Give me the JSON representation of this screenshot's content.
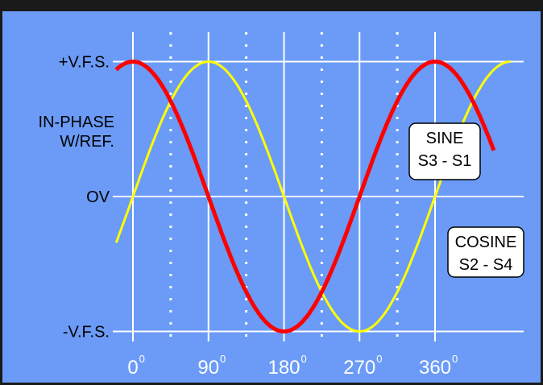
{
  "chart_data": {
    "type": "line",
    "x_unit": "degrees",
    "xlim": [
      -10,
      400
    ],
    "ylim": [
      -1,
      1
    ],
    "y_tick_labels": [
      {
        "value": 1,
        "text": "+V.F.S."
      },
      {
        "value": 0,
        "text": "OV"
      },
      {
        "value": -1,
        "text": "-V.F.S."
      }
    ],
    "ylabel_lines": [
      "IN-PHASE",
      "W/REF."
    ],
    "x_ticks": [
      {
        "value": 0,
        "text": "0",
        "sup": "0"
      },
      {
        "value": 90,
        "text": "90",
        "sup": "0"
      },
      {
        "value": 180,
        "text": "180",
        "sup": "0"
      },
      {
        "value": 270,
        "text": "270",
        "sup": "0"
      },
      {
        "value": 360,
        "text": "360",
        "sup": "0"
      }
    ],
    "solid_gridlines_x": [
      0,
      90,
      180,
      270,
      360
    ],
    "dotted_gridlines_x": [
      45,
      135,
      225,
      315
    ],
    "series": [
      {
        "name": "SINE S3 - S1",
        "label_lines": [
          "SINE",
          "S3 - S1"
        ],
        "color": "#ffff00",
        "function": "sin",
        "x_range": [
          -20,
          450
        ]
      },
      {
        "name": "COSINE S2 - S4",
        "label_lines": [
          "COSINE",
          "S2 - S4"
        ],
        "color": "#ff0000",
        "function": "cos",
        "x_range": [
          -20,
          430
        ]
      }
    ]
  },
  "colors": {
    "background": "#6b9bf6",
    "grid": "#ffffff",
    "sine": "#ffff00",
    "cosine": "#ff0000"
  }
}
